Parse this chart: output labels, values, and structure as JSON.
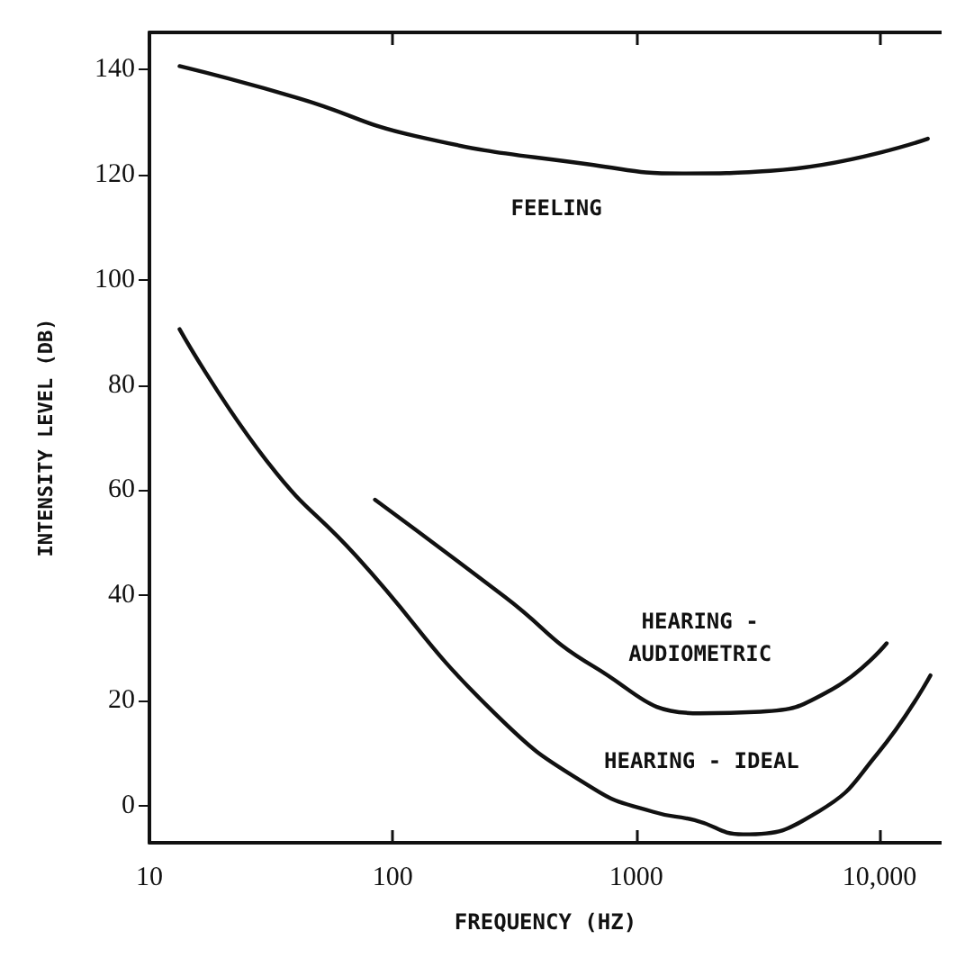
{
  "chart_data": {
    "type": "line",
    "xlabel": "FREQUENCY (HZ)",
    "ylabel": "INTENSITY LEVEL (DB)",
    "log": "x",
    "xlim": [
      10,
      18000
    ],
    "xticks": [
      10,
      100,
      1000,
      {
        "value": 10000,
        "label": "10,000"
      }
    ],
    "ylim": [
      -7,
      147
    ],
    "yticks": [
      0,
      20,
      40,
      60,
      80,
      100,
      120,
      140
    ],
    "grid": false,
    "legend": false,
    "marker": "none",
    "line_style": "solid",
    "series": [
      {
        "name": "FEELING",
        "color": "#111111",
        "x": [
          13.3,
          41,
          124,
          668,
          1550,
          3560,
          15800
        ],
        "values": [
          140.6,
          134.5,
          127.3,
          121.8,
          120.2,
          120.7,
          126.8
        ]
      },
      {
        "name": "HEARING - IDEAL",
        "color": "#111111",
        "x": [
          13.3,
          31,
          71,
          261,
          668,
          1170,
          1740,
          2750,
          5600,
          9800,
          16200
        ],
        "values": [
          90.6,
          65,
          47.4,
          17.7,
          3.3,
          -1.1,
          -2.7,
          -5.4,
          -1.1,
          9.9,
          24.8
        ]
      },
      {
        "name": "HEARING -\nAUDIOMETRIC",
        "color": "#111111",
        "x": [
          84.5,
          289,
          668,
          1830,
          3240,
          6300,
          10700
        ],
        "values": [
          58.2,
          39.7,
          26.5,
          17.6,
          17.9,
          22,
          30.9
        ]
      }
    ]
  }
}
